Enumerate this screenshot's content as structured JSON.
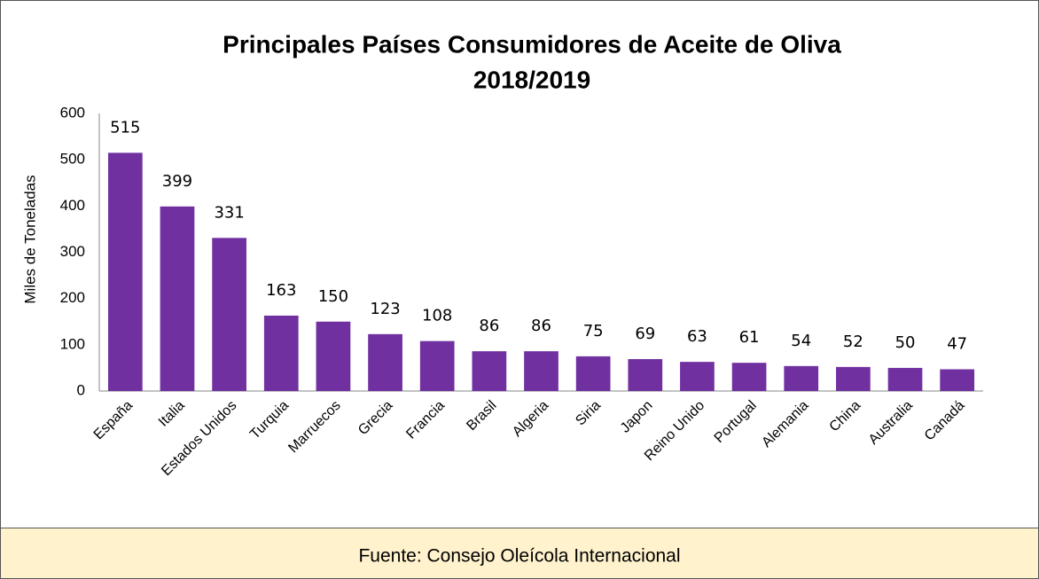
{
  "chart_data": {
    "type": "bar",
    "title": "Principales Países Consumidores de Aceite de Oliva",
    "subtitle": "2018/2019",
    "y_label": "Miles de Toneladas",
    "categories": [
      "España",
      "Italia",
      "Estados Unidos",
      "Turquia",
      "Marruecos",
      "Grecia",
      "Francia",
      "Brasil",
      "Algeria",
      "Siria",
      "Japon",
      "Reino Unido",
      "Portugal",
      "Alemania",
      "China",
      "Australia",
      "Canadá"
    ],
    "values": [
      515,
      399,
      331,
      163,
      150,
      123,
      108,
      86,
      86,
      75,
      69,
      63,
      61,
      54,
      52,
      50,
      47
    ],
    "color": "#7030a0",
    "ylim": [
      0,
      600
    ],
    "yticks": [
      0,
      100,
      200,
      300,
      400,
      500,
      600
    ],
    "grid": false,
    "source": "Fuente: Consejo Oleícola Internacional"
  }
}
